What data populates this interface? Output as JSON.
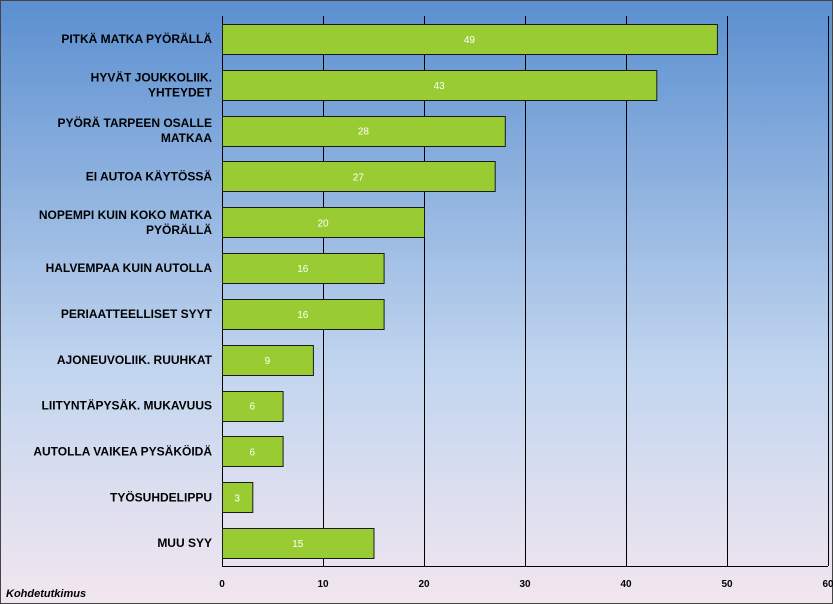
{
  "chart_data": {
    "type": "bar",
    "orientation": "horizontal",
    "categories": [
      "PITKÄ MATKA PYÖRÄLLÄ",
      "HYVÄT JOUKKOLIIK. YHTEYDET",
      "PYÖRÄ TARPEEN OSALLE MATKAA",
      "EI AUTOA KÄYTÖSSÄ",
      "NOPEMPI KUIN KOKO MATKA PYÖRÄLLÄ",
      "HALVEMPAA KUIN AUTOLLA",
      "PERIAATTEELLISET SYYT",
      "AJONEUVOLIIK. RUUHKAT",
      "LIITYNTÄPYSÄK. MUKAVUUS",
      "AUTOLLA VAIKEA PYSÄKÖIDÄ",
      "TYÖSUHDELIPPU",
      "MUU SYY"
    ],
    "category_lines": [
      [
        "PITKÄ MATKA PYÖRÄLLÄ"
      ],
      [
        "HYVÄT JOUKKOLIIK.",
        "YHTEYDET"
      ],
      [
        "PYÖRÄ TARPEEN OSALLE",
        "MATKAA"
      ],
      [
        "EI AUTOA KÄYTÖSSÄ"
      ],
      [
        "NOPEMPI KUIN KOKO MATKA",
        "PYÖRÄLLÄ"
      ],
      [
        "HALVEMPAA KUIN AUTOLLA"
      ],
      [
        "PERIAATTEELLISET SYYT"
      ],
      [
        "AJONEUVOLIIK. RUUHKAT"
      ],
      [
        "LIITYNTÄPYSÄK. MUKAVUUS"
      ],
      [
        "AUTOLLA VAIKEA PYSÄKÖIDÄ"
      ],
      [
        "TYÖSUHDELIPPU"
      ],
      [
        "MUU SYY"
      ]
    ],
    "values": [
      49,
      43,
      28,
      27,
      20,
      16,
      16,
      9,
      6,
      6,
      3,
      15
    ],
    "xlim": [
      0,
      60
    ],
    "xticks": [
      0,
      10,
      20,
      30,
      40,
      50,
      60
    ],
    "grid": "vertical",
    "data_labels": true,
    "legend": "none"
  },
  "source_note": "Kohdetutkimus",
  "colors": {
    "bar_fill": "#99cc33",
    "bar_stroke": "#1a1a1a",
    "grid": "#000000",
    "data_label": "#ffffff",
    "background_top": "#5b8fd0",
    "background_mid": "#c3d6ef",
    "background_bottom": "#f2e6ef"
  }
}
